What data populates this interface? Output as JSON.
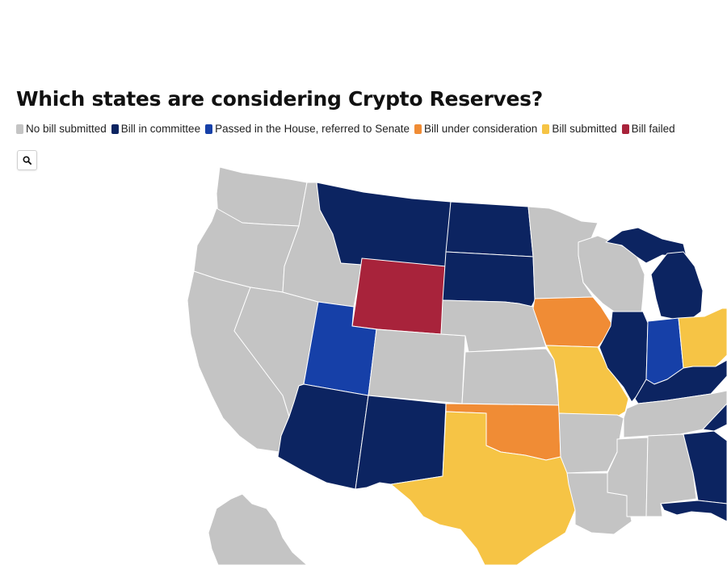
{
  "title": "Which states are considering Crypto Reserves?",
  "legend": [
    {
      "label": "No bill submitted",
      "color": "#c4c4c4",
      "key": "none"
    },
    {
      "label": "Bill in committee",
      "color": "#0c2461",
      "key": "committee"
    },
    {
      "label": "Passed in the House, referred to Senate",
      "color": "#1640a8",
      "key": "passed_house"
    },
    {
      "label": "Bill under consideration",
      "color": "#f08c35",
      "key": "consideration"
    },
    {
      "label": "Bill submitted",
      "color": "#f6c445",
      "key": "submitted"
    },
    {
      "label": "Bill failed",
      "color": "#a8233b",
      "key": "failed"
    }
  ],
  "search_icon": "search-icon",
  "states": {
    "WA": "none",
    "OR": "none",
    "CA": "none",
    "NV": "none",
    "ID": "none",
    "MT": "committee",
    "WY": "failed",
    "UT": "passed_house",
    "AZ": "committee",
    "CO": "none",
    "NM": "committee",
    "ND": "committee",
    "SD": "committee",
    "NE": "none",
    "KS": "none",
    "OK": "consideration",
    "TX": "submitted",
    "MN": "none",
    "IA": "consideration",
    "MO": "submitted",
    "AR": "none",
    "LA": "none",
    "WI": "none",
    "IL": "committee",
    "MI": "committee",
    "IN": "passed_house",
    "OH": "submitted",
    "KY": "committee",
    "TN": "none",
    "MS": "none",
    "AL": "none",
    "GA": "committee",
    "FL": "committee",
    "NC": "committee",
    "AK": "none"
  }
}
